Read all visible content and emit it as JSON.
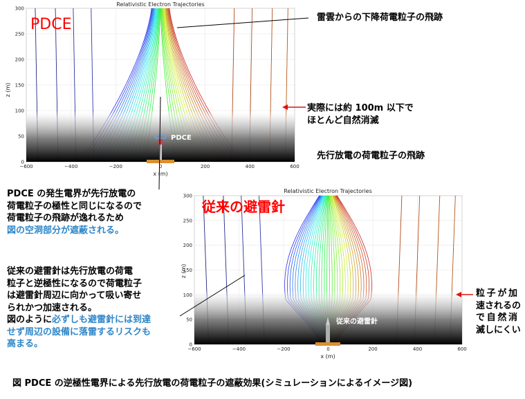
{
  "top_plot": {
    "title": "Relativistic Electron Trajectories",
    "label": "PDCE",
    "device_label": "PDCE",
    "xlabel": "x (m)",
    "ylabel": "z (m)",
    "xticks": [
      "−600",
      "−400",
      "−200",
      "0",
      "200",
      "400",
      "600"
    ],
    "yticks": [
      "0",
      "50",
      "100",
      "150",
      "200",
      "250",
      "300"
    ]
  },
  "bottom_plot": {
    "title": "Relativistic Electron Trajectories",
    "label": "従来の避雷針",
    "device_label": "従来の避雷針",
    "xlabel": "x (m)",
    "ylabel": "z (m)",
    "xticks": [
      "−600",
      "−400",
      "−200",
      "0",
      "200",
      "400",
      "600"
    ],
    "yticks": [
      "0",
      "50",
      "100",
      "150",
      "200",
      "250",
      "300"
    ]
  },
  "annotations": {
    "descending": "雷雲からの下降荷電粒子の飛跡",
    "decay_line1": "実際には約 100m 以下で",
    "decay_line2": "ほとんど自然消滅",
    "leader": "先行放電の荷電粒子の飛跡",
    "pdce_line1": "PDCE の発生電界が先行放電の",
    "pdce_line2": "荷電粒子の極性と同じになるので",
    "pdce_line3": "荷電粒子の飛跡が逸れるため",
    "pdce_line4": "図の空洞部分が遮蔽される。",
    "conv_line1": "従来の避雷針は先行放電の荷電",
    "conv_line2": "粒子と逆極性になるので荷電粒子",
    "conv_line3": "は避雷針周辺に向かって吸い寄せ",
    "conv_line4": "られかつ加速される。",
    "conv_line5a": "図のように",
    "conv_line5b": "必ずしも避雷針には到達",
    "conv_line6": "せず周辺の設備に落雷するリスクも",
    "conv_line7": "高まる。",
    "accel_line1": "粒子が加",
    "accel_line2": "速されるの",
    "accel_line3": "で自然消",
    "accel_line4": "滅しにくい"
  },
  "caption": "図 PDCE の逆極性電界による先行放電の荷電粒子の遮蔽効果(シミュレーションによるイメージ図)",
  "colors": {
    "label_red": "#ff0000",
    "arrow_red": "#e01010",
    "blue_text": "#2e86c9"
  }
}
